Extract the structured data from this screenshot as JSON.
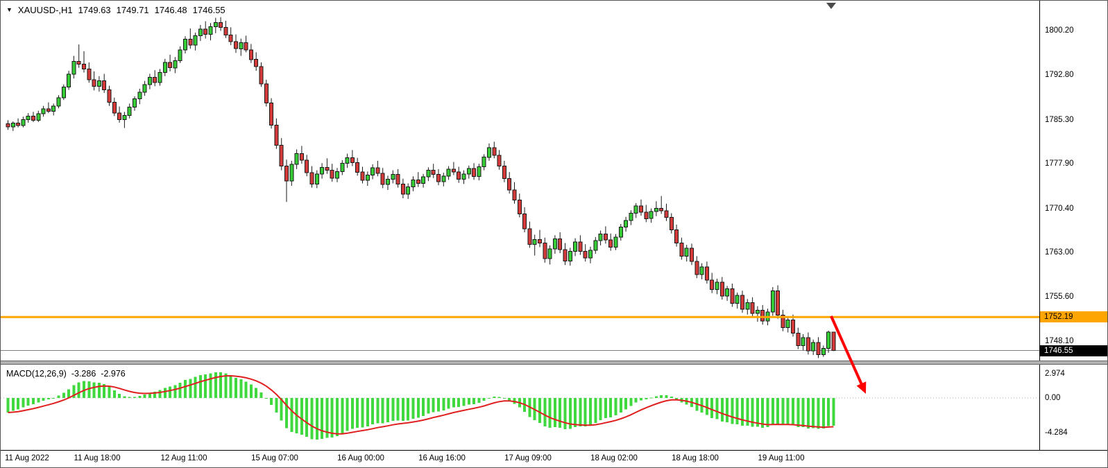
{
  "header": {
    "marker": "▼",
    "title": "XAUUSD-,H1",
    "ohlc": {
      "open": "1749.63",
      "high": "1749.71",
      "low": "1746.48",
      "close": "1746.55"
    }
  },
  "chart_data": {
    "type": "candlestick",
    "symbol": "XAUUSD-",
    "timeframe": "H1",
    "y_axis": {
      "visible_min": 1745.0,
      "visible_max": 1802.0,
      "ticks": [
        {
          "label": "1800.20",
          "value": 1800.2
        },
        {
          "label": "1792.80",
          "value": 1792.8
        },
        {
          "label": "1785.30",
          "value": 1785.3
        },
        {
          "label": "1777.90",
          "value": 1777.9
        },
        {
          "label": "1770.40",
          "value": 1770.4
        },
        {
          "label": "1763.00",
          "value": 1763.0
        },
        {
          "label": "1755.60",
          "value": 1755.6
        },
        {
          "label": "1748.10",
          "value": 1748.1
        }
      ]
    },
    "x_axis": {
      "labels": [
        {
          "label": "11 Aug 2022",
          "bar": 0
        },
        {
          "label": "11 Aug 18:00",
          "bar": 18
        },
        {
          "label": "12 Aug 11:00",
          "bar": 35
        },
        {
          "label": "15 Aug 07:00",
          "bar": 53
        },
        {
          "label": "16 Aug 00:00",
          "bar": 70
        },
        {
          "label": "16 Aug 16:00",
          "bar": 86
        },
        {
          "label": "17 Aug 09:00",
          "bar": 103
        },
        {
          "label": "18 Aug 02:00",
          "bar": 120
        },
        {
          "label": "18 Aug 18:00",
          "bar": 136
        },
        {
          "label": "19 Aug 11:00",
          "bar": 153
        }
      ]
    },
    "candles": [
      [
        1784.6,
        1785.2,
        1783.6,
        1784.1
      ],
      [
        1784.1,
        1785.0,
        1783.4,
        1784.7
      ],
      [
        1784.7,
        1785.5,
        1784.0,
        1784.3
      ],
      [
        1784.3,
        1785.8,
        1784.0,
        1785.3
      ],
      [
        1785.3,
        1786.4,
        1784.8,
        1785.9
      ],
      [
        1785.9,
        1786.6,
        1784.9,
        1785.2
      ],
      [
        1785.2,
        1786.8,
        1784.9,
        1786.3
      ],
      [
        1786.3,
        1787.6,
        1785.8,
        1787.1
      ],
      [
        1787.1,
        1788.2,
        1786.4,
        1786.7
      ],
      [
        1786.7,
        1788.0,
        1786.0,
        1787.6
      ],
      [
        1787.6,
        1789.4,
        1787.2,
        1789.0
      ],
      [
        1789.0,
        1791.2,
        1788.6,
        1790.8
      ],
      [
        1790.8,
        1793.5,
        1790.3,
        1792.9
      ],
      [
        1792.9,
        1796.0,
        1792.2,
        1795.1
      ],
      [
        1795.1,
        1797.9,
        1794.0,
        1794.6
      ],
      [
        1794.6,
        1796.8,
        1793.2,
        1793.8
      ],
      [
        1793.8,
        1794.9,
        1791.5,
        1792.0
      ],
      [
        1792.0,
        1793.4,
        1790.2,
        1790.9
      ],
      [
        1790.9,
        1792.6,
        1790.0,
        1791.8
      ],
      [
        1791.8,
        1793.0,
        1789.8,
        1790.3
      ],
      [
        1790.3,
        1791.0,
        1787.6,
        1788.2
      ],
      [
        1788.2,
        1789.0,
        1785.9,
        1786.4
      ],
      [
        1786.4,
        1787.5,
        1784.8,
        1785.3
      ],
      [
        1785.3,
        1786.6,
        1783.9,
        1786.0
      ],
      [
        1786.0,
        1788.0,
        1785.5,
        1787.4
      ],
      [
        1787.4,
        1789.2,
        1786.8,
        1788.8
      ],
      [
        1788.8,
        1790.5,
        1787.9,
        1789.9
      ],
      [
        1789.9,
        1791.8,
        1789.3,
        1791.2
      ],
      [
        1791.2,
        1793.0,
        1790.4,
        1792.4
      ],
      [
        1792.4,
        1793.6,
        1790.9,
        1791.5
      ],
      [
        1791.5,
        1793.8,
        1791.0,
        1793.2
      ],
      [
        1793.2,
        1795.5,
        1792.6,
        1794.9
      ],
      [
        1794.9,
        1796.2,
        1793.4,
        1794.0
      ],
      [
        1794.0,
        1795.8,
        1793.1,
        1795.2
      ],
      [
        1795.2,
        1797.6,
        1794.8,
        1797.0
      ],
      [
        1797.0,
        1799.3,
        1796.4,
        1798.8
      ],
      [
        1798.8,
        1800.6,
        1797.2,
        1797.8
      ],
      [
        1797.8,
        1799.9,
        1796.9,
        1799.4
      ],
      [
        1799.4,
        1801.2,
        1798.5,
        1800.5
      ],
      [
        1800.5,
        1801.8,
        1798.9,
        1799.6
      ],
      [
        1799.6,
        1801.5,
        1798.6,
        1800.9
      ],
      [
        1800.9,
        1802.4,
        1799.8,
        1801.6
      ],
      [
        1801.6,
        1802.5,
        1800.2,
        1800.8
      ],
      [
        1800.8,
        1801.9,
        1799.0,
        1799.5
      ],
      [
        1799.5,
        1800.8,
        1797.8,
        1798.4
      ],
      [
        1798.4,
        1799.6,
        1796.5,
        1797.2
      ],
      [
        1797.2,
        1798.9,
        1796.0,
        1798.2
      ],
      [
        1798.2,
        1799.4,
        1796.6,
        1797.0
      ],
      [
        1797.0,
        1798.0,
        1794.8,
        1795.4
      ],
      [
        1795.4,
        1796.6,
        1793.5,
        1794.2
      ],
      [
        1794.2,
        1794.9,
        1790.8,
        1791.3
      ],
      [
        1791.3,
        1792.0,
        1787.5,
        1788.1
      ],
      [
        1788.1,
        1788.9,
        1783.8,
        1784.4
      ],
      [
        1784.4,
        1785.5,
        1780.4,
        1781.0
      ],
      [
        1781.0,
        1782.2,
        1776.8,
        1777.5
      ],
      [
        1777.5,
        1778.6,
        1771.5,
        1775.0
      ],
      [
        1775.0,
        1778.4,
        1774.2,
        1777.8
      ],
      [
        1777.8,
        1780.3,
        1777.0,
        1779.6
      ],
      [
        1779.6,
        1780.9,
        1777.9,
        1778.5
      ],
      [
        1778.5,
        1779.4,
        1775.8,
        1776.4
      ],
      [
        1776.4,
        1777.5,
        1773.9,
        1774.5
      ],
      [
        1774.5,
        1776.8,
        1773.8,
        1776.2
      ],
      [
        1776.2,
        1778.0,
        1775.4,
        1777.3
      ],
      [
        1777.3,
        1778.8,
        1776.2,
        1776.8
      ],
      [
        1776.8,
        1777.9,
        1774.9,
        1775.5
      ],
      [
        1775.5,
        1777.2,
        1774.8,
        1776.6
      ],
      [
        1776.6,
        1778.5,
        1776.0,
        1778.0
      ],
      [
        1778.0,
        1779.6,
        1777.2,
        1778.9
      ],
      [
        1778.9,
        1780.2,
        1777.5,
        1778.1
      ],
      [
        1778.1,
        1778.9,
        1775.9,
        1776.5
      ],
      [
        1776.5,
        1777.4,
        1774.6,
        1775.1
      ],
      [
        1775.1,
        1776.6,
        1774.2,
        1776.0
      ],
      [
        1776.0,
        1777.8,
        1775.3,
        1777.2
      ],
      [
        1777.2,
        1778.4,
        1775.8,
        1776.3
      ],
      [
        1776.3,
        1777.2,
        1773.8,
        1774.4
      ],
      [
        1774.4,
        1775.9,
        1773.5,
        1775.3
      ],
      [
        1775.3,
        1776.8,
        1774.6,
        1776.1
      ],
      [
        1776.1,
        1777.0,
        1773.9,
        1774.5
      ],
      [
        1774.5,
        1775.4,
        1772.1,
        1772.8
      ],
      [
        1772.8,
        1774.6,
        1772.0,
        1774.0
      ],
      [
        1774.0,
        1775.8,
        1773.3,
        1775.2
      ],
      [
        1775.2,
        1776.5,
        1774.0,
        1774.6
      ],
      [
        1774.6,
        1776.2,
        1773.9,
        1775.7
      ],
      [
        1775.7,
        1777.3,
        1775.0,
        1776.8
      ],
      [
        1776.8,
        1777.9,
        1775.5,
        1776.1
      ],
      [
        1776.1,
        1777.0,
        1774.3,
        1774.9
      ],
      [
        1774.9,
        1776.4,
        1774.1,
        1775.8
      ],
      [
        1775.8,
        1777.5,
        1775.2,
        1777.0
      ],
      [
        1777.0,
        1778.2,
        1776.0,
        1776.5
      ],
      [
        1776.5,
        1777.4,
        1774.7,
        1775.3
      ],
      [
        1775.3,
        1776.8,
        1774.5,
        1776.2
      ],
      [
        1776.2,
        1777.6,
        1775.4,
        1777.1
      ],
      [
        1777.1,
        1778.0,
        1775.2,
        1775.8
      ],
      [
        1775.8,
        1777.9,
        1775.1,
        1777.4
      ],
      [
        1777.4,
        1779.5,
        1776.8,
        1779.0
      ],
      [
        1779.0,
        1781.3,
        1778.4,
        1780.6
      ],
      [
        1780.6,
        1781.6,
        1778.8,
        1779.3
      ],
      [
        1779.3,
        1780.2,
        1776.9,
        1777.5
      ],
      [
        1777.5,
        1778.4,
        1774.8,
        1775.4
      ],
      [
        1775.4,
        1776.5,
        1772.9,
        1773.5
      ],
      [
        1773.5,
        1774.8,
        1771.2,
        1771.8
      ],
      [
        1771.8,
        1772.9,
        1768.9,
        1769.5
      ],
      [
        1769.5,
        1770.6,
        1766.4,
        1767.0
      ],
      [
        1767.0,
        1768.2,
        1763.8,
        1764.4
      ],
      [
        1764.4,
        1766.0,
        1762.5,
        1765.2
      ],
      [
        1765.2,
        1766.8,
        1763.9,
        1764.6
      ],
      [
        1764.6,
        1765.5,
        1761.3,
        1762.0
      ],
      [
        1762.0,
        1764.2,
        1761.0,
        1763.6
      ],
      [
        1763.6,
        1765.9,
        1762.8,
        1765.3
      ],
      [
        1765.3,
        1766.4,
        1762.9,
        1763.5
      ],
      [
        1763.5,
        1764.6,
        1760.9,
        1761.6
      ],
      [
        1761.6,
        1763.8,
        1760.8,
        1763.2
      ],
      [
        1763.2,
        1765.4,
        1762.4,
        1764.8
      ],
      [
        1764.8,
        1765.9,
        1762.6,
        1763.2
      ],
      [
        1763.2,
        1764.4,
        1761.5,
        1762.1
      ],
      [
        1762.1,
        1764.0,
        1761.2,
        1763.4
      ],
      [
        1763.4,
        1765.6,
        1762.8,
        1765.0
      ],
      [
        1765.0,
        1766.7,
        1764.2,
        1766.1
      ],
      [
        1766.1,
        1767.4,
        1764.5,
        1765.1
      ],
      [
        1765.1,
        1766.2,
        1763.3,
        1763.9
      ],
      [
        1763.9,
        1766.1,
        1763.4,
        1765.6
      ],
      [
        1765.6,
        1767.8,
        1765.0,
        1767.3
      ],
      [
        1767.3,
        1769.0,
        1766.5,
        1768.4
      ],
      [
        1768.4,
        1770.1,
        1767.6,
        1769.6
      ],
      [
        1769.6,
        1771.3,
        1768.8,
        1770.8
      ],
      [
        1770.8,
        1771.9,
        1769.2,
        1769.8
      ],
      [
        1769.8,
        1771.0,
        1768.1,
        1768.7
      ],
      [
        1768.7,
        1770.4,
        1768.0,
        1769.9
      ],
      [
        1769.9,
        1771.6,
        1769.1,
        1770.4
      ],
      [
        1770.4,
        1772.5,
        1769.5,
        1770.0
      ],
      [
        1770.0,
        1771.2,
        1768.3,
        1768.9
      ],
      [
        1768.9,
        1769.6,
        1766.2,
        1766.8
      ],
      [
        1766.8,
        1767.7,
        1764.0,
        1764.6
      ],
      [
        1764.6,
        1765.5,
        1761.8,
        1762.4
      ],
      [
        1762.4,
        1764.3,
        1761.5,
        1763.7
      ],
      [
        1763.7,
        1764.5,
        1760.9,
        1761.5
      ],
      [
        1761.5,
        1762.4,
        1758.7,
        1759.3
      ],
      [
        1759.3,
        1761.2,
        1758.5,
        1760.6
      ],
      [
        1760.6,
        1761.5,
        1757.8,
        1758.4
      ],
      [
        1758.4,
        1759.6,
        1756.2,
        1756.8
      ],
      [
        1756.8,
        1758.6,
        1756.0,
        1758.0
      ],
      [
        1758.0,
        1758.9,
        1755.1,
        1755.7
      ],
      [
        1755.7,
        1757.4,
        1754.9,
        1756.9
      ],
      [
        1756.9,
        1757.8,
        1753.9,
        1754.5
      ],
      [
        1754.5,
        1756.3,
        1753.6,
        1755.8
      ],
      [
        1755.8,
        1756.6,
        1752.9,
        1753.5
      ],
      [
        1753.5,
        1755.2,
        1752.6,
        1754.6
      ],
      [
        1754.6,
        1755.5,
        1752.2,
        1752.8
      ],
      [
        1752.8,
        1754.0,
        1751.4,
        1753.3
      ],
      [
        1753.3,
        1754.2,
        1750.9,
        1751.5
      ],
      [
        1751.5,
        1753.6,
        1750.8,
        1753.0
      ],
      [
        1753.0,
        1757.2,
        1752.4,
        1756.6
      ],
      [
        1756.6,
        1757.5,
        1751.9,
        1752.5
      ],
      [
        1752.5,
        1753.4,
        1749.8,
        1750.4
      ],
      [
        1750.4,
        1752.3,
        1749.6,
        1751.7
      ],
      [
        1751.7,
        1752.6,
        1748.9,
        1749.5
      ],
      [
        1749.5,
        1750.4,
        1746.8,
        1747.4
      ],
      [
        1747.4,
        1749.3,
        1746.6,
        1748.7
      ],
      [
        1748.7,
        1749.6,
        1745.9,
        1746.5
      ],
      [
        1746.5,
        1748.4,
        1745.8,
        1747.9
      ],
      [
        1747.9,
        1748.8,
        1745.3,
        1745.9
      ],
      [
        1745.9,
        1747.4,
        1745.5,
        1746.9
      ],
      [
        1746.9,
        1749.9,
        1746.2,
        1749.63
      ],
      [
        1749.63,
        1749.71,
        1746.48,
        1746.55
      ]
    ],
    "objects": {
      "hline": {
        "price": 1752.19,
        "label": "1752.19",
        "color": "#FFA500"
      },
      "bid": {
        "price": 1746.55,
        "label": "1746.55"
      },
      "arrow": {
        "from": [
          1197,
          455
        ],
        "to": [
          1247,
          567
        ],
        "color": "#FF0000"
      }
    },
    "indicator": {
      "name": "MACD(12,26,9)",
      "value_main": "-3.286",
      "value_signal": "-2.976",
      "fast": 12,
      "slow": 26,
      "signal_period": 9,
      "y_ticks": [
        {
          "label": "2.974",
          "value": 2.974
        },
        {
          "label": "0.00",
          "value": 0
        },
        {
          "label": "-4.284",
          "value": -4.284
        }
      ]
    }
  },
  "colors": {
    "bull": "#35CC35",
    "bear": "#D43A3A",
    "wick": "#1a1a1a",
    "histogram": "#3FD93F",
    "signal_line": "#E01F1F",
    "bid_line": "#808080"
  }
}
